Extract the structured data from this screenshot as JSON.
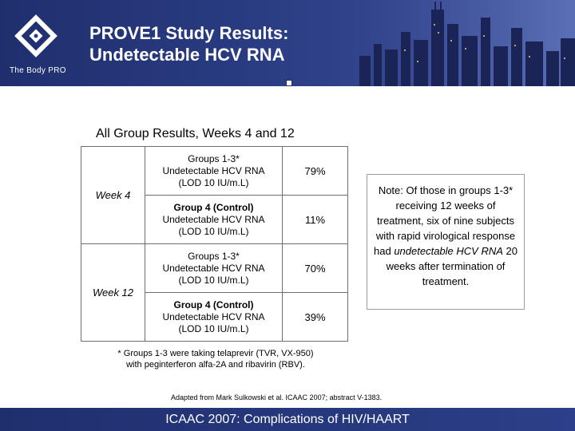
{
  "header": {
    "brand": "The Body PRO",
    "title_line1": "PROVE1 Study Results:",
    "title_line2": "Undetectable HCV RNA"
  },
  "colors": {
    "header_blue": "#2a3c82",
    "footer_blue": "#1f2f6e",
    "border_gray": "#6f6f6f"
  },
  "table": {
    "title": "All Group Results, Weeks 4 and 12",
    "weeks": [
      {
        "label": "Week 4",
        "rows": [
          {
            "group": "Groups 1-3*",
            "detail1": "Undetectable HCV RNA",
            "detail2": "(LOD 10 IU/m.L)",
            "value": "79%"
          },
          {
            "group": "Group 4 (Control)",
            "detail1": "Undetectable HCV RNA",
            "detail2": "(LOD 10 IU/m.L)",
            "value": "11%"
          }
        ]
      },
      {
        "label": "Week 12",
        "rows": [
          {
            "group": "Groups 1-3*",
            "detail1": "Undetectable HCV RNA",
            "detail2": "(LOD 10 IU/m.L)",
            "value": "70%"
          },
          {
            "group": "Group 4 (Control)",
            "detail1": "Undetectable HCV RNA",
            "detail2": "(LOD 10 IU/m.L)",
            "value": "39%"
          }
        ]
      }
    ]
  },
  "footnote": {
    "line1": "* Groups 1-3 were taking telaprevir (TVR, VX-950)",
    "line2": "with peginterferon alfa-2A and ribavirin (RBV)."
  },
  "note": {
    "text_before": "Note: Of those in groups 1-3* receiving 12 weeks of treatment, six of nine subjects with rapid virological response had",
    "emphasis": "undetectable HCV RNA",
    "text_after": "20 weeks after termination of treatment."
  },
  "source": "Adapted from Mark Sulkowski et al. ICAAC 2007; abstract V-1383.",
  "footer": {
    "text": "ICAAC 2007: Complications of HIV/HAART"
  }
}
